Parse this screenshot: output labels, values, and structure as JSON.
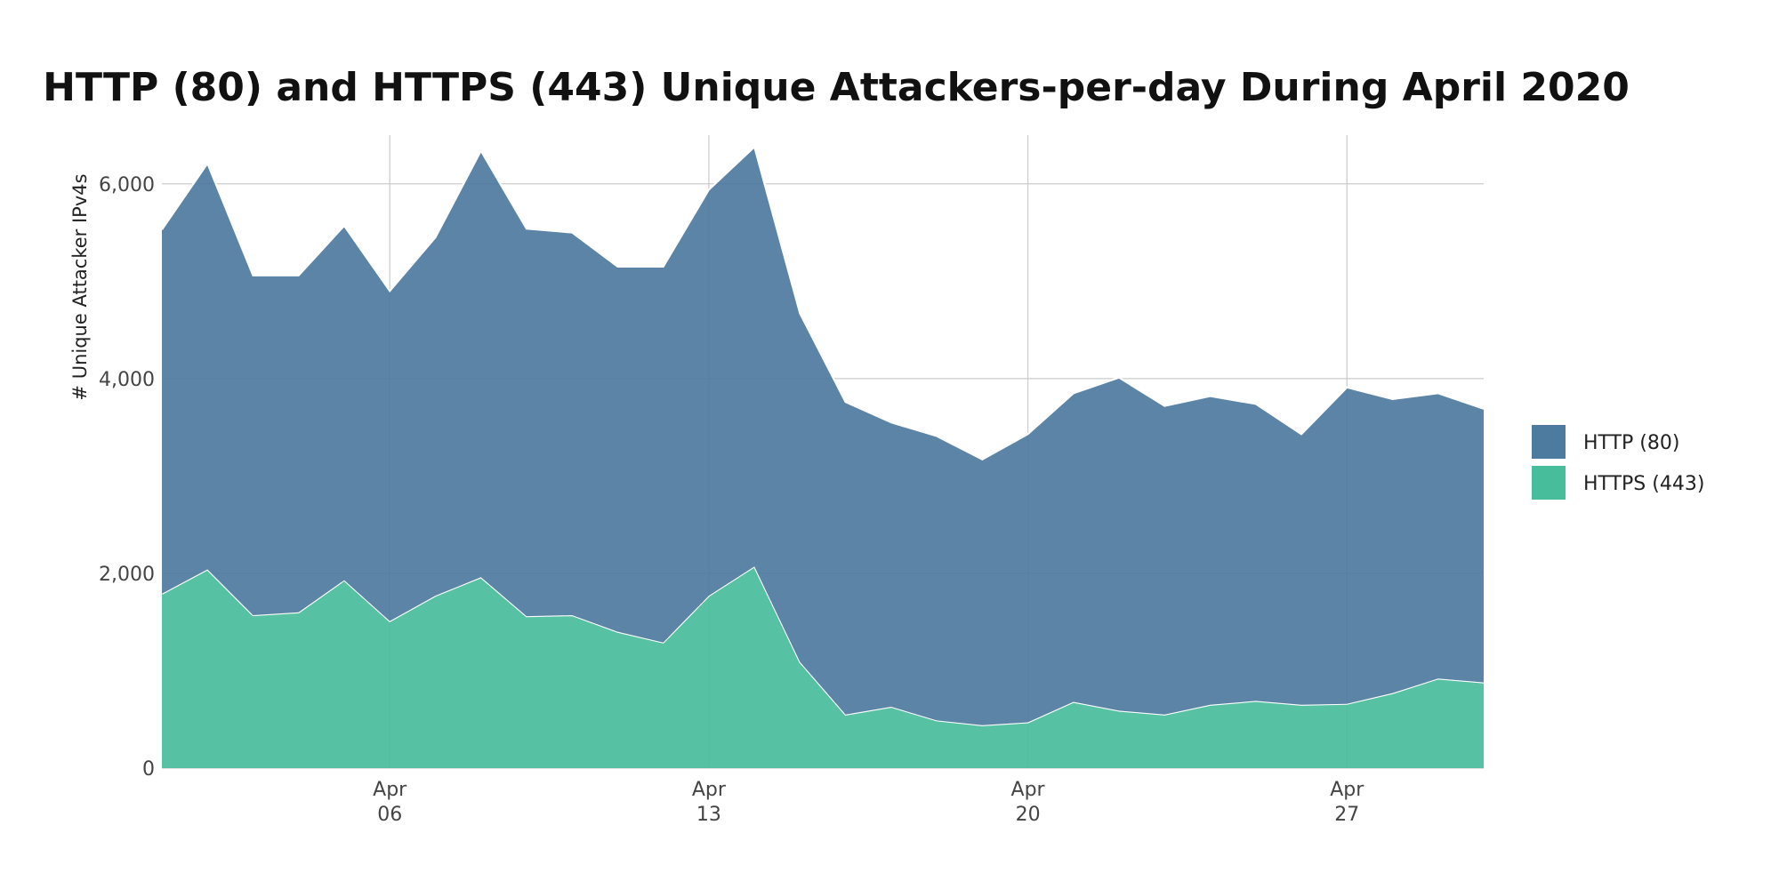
{
  "chart_data": {
    "type": "area",
    "stacked": true,
    "title": "HTTP (80) and HTTPS (443) Unique Attackers-per-day During April 2020",
    "ylabel": "# Unique Attacker IPv4s",
    "xlabel": "",
    "x": [
      "2020-04-01",
      "2020-04-02",
      "2020-04-03",
      "2020-04-04",
      "2020-04-05",
      "2020-04-06",
      "2020-04-07",
      "2020-04-08",
      "2020-04-09",
      "2020-04-10",
      "2020-04-11",
      "2020-04-12",
      "2020-04-13",
      "2020-04-14",
      "2020-04-15",
      "2020-04-16",
      "2020-04-17",
      "2020-04-18",
      "2020-04-19",
      "2020-04-20",
      "2020-04-21",
      "2020-04-22",
      "2020-04-23",
      "2020-04-24",
      "2020-04-25",
      "2020-04-26",
      "2020-04-27",
      "2020-04-28",
      "2020-04-29",
      "2020-04-30"
    ],
    "series": [
      {
        "name": "HTTPS (443)",
        "color": "#48bd9b",
        "values": [
          1790,
          2040,
          1570,
          1600,
          1930,
          1510,
          1770,
          1960,
          1560,
          1570,
          1400,
          1290,
          1770,
          2070,
          1090,
          550,
          630,
          490,
          440,
          470,
          680,
          590,
          550,
          650,
          690,
          650,
          660,
          770,
          920,
          880
        ]
      },
      {
        "name": "HTTP (80)",
        "color": "#4d7a9f",
        "values": [
          3740,
          4170,
          3490,
          3460,
          3640,
          3390,
          3680,
          4380,
          3980,
          3930,
          3750,
          3860,
          4170,
          4310,
          3580,
          3210,
          2920,
          2920,
          2730,
          2960,
          3170,
          3420,
          3170,
          3170,
          3050,
          2780,
          3250,
          3020,
          2930,
          2810
        ]
      }
    ],
    "stack_totals": [
      5530,
      6210,
      5060,
      5060,
      5570,
      4900,
      5450,
      6340,
      5540,
      5500,
      5150,
      5150,
      5940,
      6380,
      4670,
      3760,
      3550,
      3410,
      3170,
      3430,
      3850,
      4010,
      3720,
      3820,
      3740,
      3430,
      3910,
      3790,
      3850,
      3690
    ],
    "xticks": [
      {
        "date": "2020-04-06",
        "line1": "Apr",
        "line2": "06"
      },
      {
        "date": "2020-04-13",
        "line1": "Apr",
        "line2": "13"
      },
      {
        "date": "2020-04-20",
        "line1": "Apr",
        "line2": "20"
      },
      {
        "date": "2020-04-27",
        "line1": "Apr",
        "line2": "27"
      }
    ],
    "yticks": [
      0,
      2000,
      4000,
      6000
    ],
    "ytick_labels": [
      "0",
      "2,000",
      "4,000",
      "6,000"
    ],
    "ylim": [
      0,
      6500
    ],
    "grid": true,
    "legend": {
      "placement": "right",
      "entries": [
        {
          "label": "HTTP (80)",
          "color": "#4d7a9f"
        },
        {
          "label": "HTTPS (443)",
          "color": "#48bd9b"
        }
      ]
    }
  }
}
